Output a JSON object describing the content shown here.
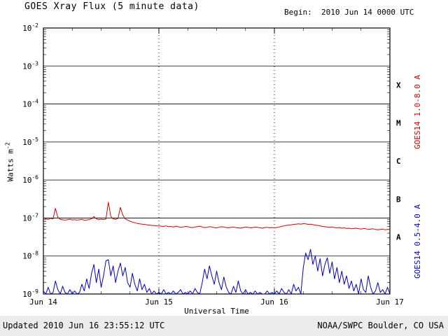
{
  "header": {
    "title": "GOES Xray Flux (5 minute data)",
    "begin_label": "Begin:  2010 Jun 14 0000 UTC"
  },
  "footer": {
    "updated": "Updated 2010 Jun 16 23:55:12 UTC",
    "credit": "NOAA/SWPC Boulder, CO USA"
  },
  "y_axis": {
    "label_base": "Watts m",
    "label_exp": "-2",
    "tick_exponents": [
      -2,
      -3,
      -4,
      -5,
      -6,
      -7,
      -8,
      -9
    ]
  },
  "x_axis": {
    "label": "Universal Time",
    "day_ticks": [
      {
        "hour": 0,
        "label": "Jun 14"
      },
      {
        "hour": 24,
        "label": "Jun 15"
      },
      {
        "hour": 48,
        "label": "Jun 16"
      },
      {
        "hour": 72,
        "label": "Jun 17"
      }
    ],
    "minor_tick_hours": 6,
    "dotted_gridline_hours": [
      24,
      48
    ]
  },
  "flare_scale": {
    "classes": [
      {
        "letter": "X",
        "log_center": -3.5
      },
      {
        "letter": "M",
        "log_center": -4.5
      },
      {
        "letter": "C",
        "log_center": -5.5
      },
      {
        "letter": "B",
        "log_center": -6.5
      },
      {
        "letter": "A",
        "log_center": -7.5
      }
    ]
  },
  "right_labels": [
    {
      "text": "GOES14 1.0-8.0 A",
      "color": "#d40000"
    },
    {
      "text": "GOES14 0.5-4.0 A",
      "color": "#0000cc"
    }
  ],
  "chart_data": {
    "type": "line",
    "title": "GOES Xray Flux (5 minute data)",
    "xlabel": "Universal Time",
    "ylabel": "Watts m^-2",
    "x_start": "2010 Jun 14 0000 UTC",
    "x_hours_range": [
      0,
      72
    ],
    "x_step_hours": 0.5,
    "y_log10_range": [
      -9,
      -2
    ],
    "grid": "solid horizontal line per decade; dotted vertical lines at day boundaries",
    "legend_position": "rotated labels on right edge",
    "series": [
      {
        "name": "GOES14 1.0-8.0 A",
        "color": "#d40000",
        "scale": 1e-08,
        "unit": "W m^-2",
        "values": [
          10.0,
          9.5,
          9.2,
          9.8,
          9.5,
          18.0,
          10.5,
          9.2,
          9.0,
          8.8,
          9.0,
          9.3,
          8.9,
          9.1,
          8.8,
          9.0,
          9.2,
          8.7,
          8.9,
          9.1,
          9.5,
          11.0,
          9.6,
          9.0,
          9.3,
          9.1,
          9.4,
          26.0,
          11.0,
          9.5,
          9.2,
          9.8,
          19.0,
          12.0,
          9.5,
          8.8,
          8.2,
          7.8,
          7.5,
          7.2,
          7.0,
          6.9,
          6.8,
          6.6,
          6.5,
          6.4,
          6.3,
          6.2,
          6.2,
          6.1,
          6.0,
          6.2,
          5.9,
          6.0,
          5.8,
          6.1,
          5.9,
          5.7,
          5.8,
          6.0,
          5.9,
          5.7,
          5.6,
          5.8,
          5.9,
          6.1,
          5.8,
          5.6,
          5.7,
          5.9,
          5.8,
          5.6,
          5.5,
          5.7,
          5.9,
          5.8,
          5.6,
          5.5,
          5.7,
          5.8,
          5.6,
          5.5,
          5.4,
          5.6,
          5.8,
          5.7,
          5.5,
          5.6,
          5.8,
          5.7,
          5.5,
          5.4,
          5.6,
          5.7,
          5.5,
          5.6,
          5.5,
          5.6,
          5.8,
          6.0,
          6.2,
          6.4,
          6.5,
          6.6,
          6.8,
          6.9,
          7.0,
          6.9,
          7.1,
          7.0,
          6.8,
          6.9,
          6.7,
          6.5,
          6.4,
          6.2,
          6.0,
          5.9,
          5.8,
          5.7,
          5.8,
          5.6,
          5.5,
          5.6,
          5.4,
          5.5,
          5.3,
          5.4,
          5.2,
          5.3,
          5.4,
          5.2,
          5.1,
          5.3,
          5.2,
          5.0,
          5.1,
          5.2,
          5.0,
          4.9,
          5.0,
          5.1,
          4.9,
          5.0,
          5.0
        ]
      },
      {
        "name": "GOES14 0.5-4.0 A",
        "color": "#0000cc",
        "scale": 1e-09,
        "unit": "W m^-2",
        "values": [
          1.2,
          1.0,
          1.5,
          1.0,
          1.1,
          2.2,
          1.3,
          1.0,
          1.6,
          1.1,
          1.0,
          1.3,
          1.0,
          1.2,
          1.0,
          1.1,
          1.8,
          1.2,
          2.5,
          1.4,
          3.5,
          6.0,
          2.0,
          4.5,
          1.5,
          3.0,
          7.5,
          8.0,
          3.0,
          5.5,
          2.0,
          4.0,
          6.5,
          3.0,
          5.0,
          2.0,
          1.5,
          3.5,
          1.8,
          1.2,
          2.5,
          1.3,
          1.8,
          1.1,
          1.4,
          1.0,
          1.2,
          1.0,
          1.1,
          1.0,
          1.3,
          1.0,
          1.1,
          1.0,
          1.2,
          1.0,
          1.1,
          1.3,
          1.0,
          1.1,
          1.0,
          1.2,
          1.0,
          1.4,
          1.1,
          1.0,
          2.0,
          4.5,
          2.5,
          5.5,
          3.0,
          1.8,
          4.0,
          2.0,
          1.3,
          2.8,
          1.5,
          1.1,
          1.0,
          1.6,
          1.1,
          2.2,
          1.2,
          1.0,
          1.3,
          1.0,
          1.1,
          1.0,
          1.2,
          1.0,
          1.1,
          1.0,
          1.0,
          1.2,
          1.0,
          1.1,
          1.0,
          1.2,
          1.0,
          1.4,
          1.1,
          1.0,
          1.3,
          1.0,
          1.8,
          1.2,
          1.5,
          1.0,
          5.0,
          12.0,
          8.0,
          15.0,
          6.0,
          10.0,
          4.0,
          8.5,
          3.0,
          6.0,
          9.0,
          3.5,
          7.0,
          2.5,
          5.0,
          2.0,
          4.0,
          1.8,
          3.0,
          1.4,
          2.2,
          1.2,
          1.8,
          1.0,
          2.5,
          1.3,
          1.1,
          3.0,
          1.5,
          1.0,
          1.2,
          2.0,
          1.1,
          1.3,
          1.0,
          1.5,
          1.0
        ]
      }
    ]
  }
}
